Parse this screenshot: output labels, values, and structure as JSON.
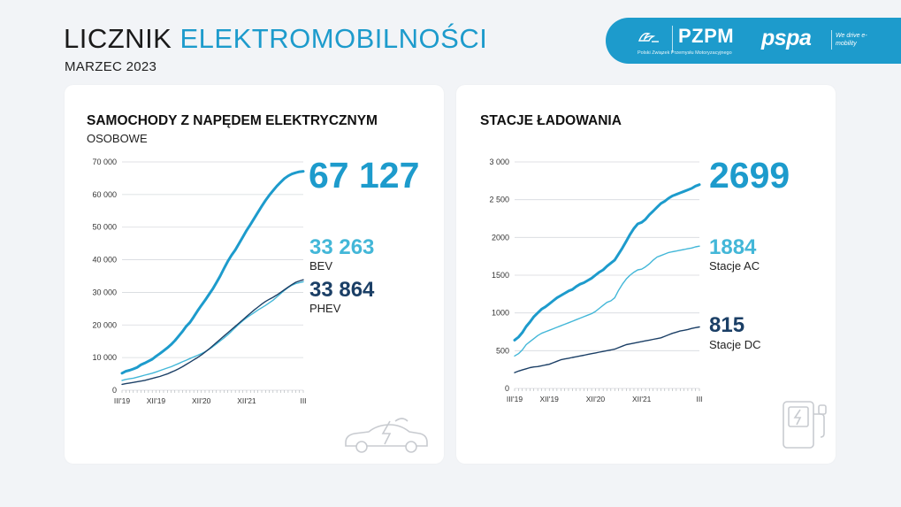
{
  "header": {
    "title_part1": "LICZNIK",
    "title_part2": "ELEKTROMOBILNOŚCI",
    "subtitle": "MARZEC 2023"
  },
  "logos": {
    "pzpm": "PZPM",
    "pzpm_sub": "Polski Związek Przemysłu Motoryzacyjnego",
    "pspa": "pspa",
    "pspa_tagline": "We drive e-mobility"
  },
  "colors": {
    "accent": "#1d9bcc",
    "light": "#43b7d8",
    "dark": "#1b3f66"
  },
  "chart_data": [
    {
      "type": "line",
      "title": "SAMOCHODY Z NAPĘDEM ELEKTRYCZNYM",
      "subtitle": "OSOBOWE",
      "x": [
        "III'19",
        "IV'19",
        "V'19",
        "VI'19",
        "VII'19",
        "VIII'19",
        "IX'19",
        "X'19",
        "XI'19",
        "XII'19",
        "I'20",
        "II'20",
        "III'20",
        "IV'20",
        "V'20",
        "VI'20",
        "VII'20",
        "VIII'20",
        "IX'20",
        "X'20",
        "XI'20",
        "XII'20",
        "I'21",
        "II'21",
        "III'21",
        "IV'21",
        "V'21",
        "VI'21",
        "VII'21",
        "VIII'21",
        "IX'21",
        "X'21",
        "XI'21",
        "XII'21",
        "I'22",
        "II'22",
        "III'22",
        "IV'22",
        "V'22",
        "VI'22",
        "VII'22",
        "VIII'22",
        "IX'22",
        "X'22",
        "XI'22",
        "XII'22",
        "I'23",
        "II'23",
        "III'23"
      ],
      "x_ticks": [
        "III'19",
        "XII'19",
        "XII'20",
        "XII'21",
        "III"
      ],
      "x_tick_index": [
        0,
        9,
        21,
        33,
        48
      ],
      "ylim": [
        0,
        70000
      ],
      "y_ticks": [
        "0",
        "10 000",
        "20 000",
        "30 000",
        "40 000",
        "50 000",
        "60 000",
        "70 000"
      ],
      "series": [
        {
          "name": "",
          "color": "#1d9bcc",
          "width": 3,
          "values": [
            5200,
            5800,
            6100,
            6500,
            7000,
            7800,
            8300,
            8900,
            9500,
            10400,
            11200,
            12100,
            13000,
            14000,
            15200,
            16600,
            18000,
            19600,
            20800,
            22500,
            24300,
            26000,
            27600,
            29300,
            31000,
            33000,
            35000,
            37300,
            39500,
            41400,
            43000,
            45000,
            47000,
            49000,
            50800,
            52700,
            54600,
            56400,
            58200,
            59800,
            61200,
            62600,
            63800,
            64900,
            65700,
            66300,
            66700,
            67000,
            67127
          ]
        },
        {
          "name": "BEV",
          "color": "#43b7d8",
          "width": 1.4,
          "values": [
            3000,
            3300,
            3500,
            3700,
            4000,
            4300,
            4600,
            4900,
            5200,
            5600,
            6000,
            6400,
            6800,
            7200,
            7700,
            8200,
            8700,
            9200,
            9700,
            10200,
            10700,
            11200,
            11800,
            12500,
            13300,
            14200,
            15100,
            16000,
            17000,
            18100,
            19200,
            20300,
            21300,
            22200,
            23000,
            23800,
            24600,
            25300,
            26000,
            26800,
            27600,
            28600,
            29600,
            30600,
            31500,
            32200,
            32700,
            33000,
            33263
          ]
        },
        {
          "name": "PHEV",
          "color": "#1b3f66",
          "width": 1.4,
          "values": [
            1800,
            2000,
            2200,
            2400,
            2600,
            2800,
            3000,
            3300,
            3600,
            3900,
            4200,
            4600,
            5000,
            5500,
            6000,
            6600,
            7200,
            7900,
            8600,
            9300,
            10000,
            10800,
            11700,
            12600,
            13600,
            14600,
            15600,
            16600,
            17600,
            18600,
            19600,
            20600,
            21600,
            22600,
            23600,
            24600,
            25500,
            26400,
            27200,
            27900,
            28500,
            29200,
            30000,
            30800,
            31600,
            32400,
            33100,
            33500,
            33864
          ]
        }
      ],
      "summary": {
        "total": "67 127",
        "bev": "33 263",
        "bev_label": "BEV",
        "phev": "33 864",
        "phev_label": "PHEV"
      }
    },
    {
      "type": "line",
      "title": "STACJE ŁADOWANIA",
      "x": [
        "III'19",
        "IV'19",
        "V'19",
        "VI'19",
        "VII'19",
        "VIII'19",
        "IX'19",
        "X'19",
        "XI'19",
        "XII'19",
        "I'20",
        "II'20",
        "III'20",
        "IV'20",
        "V'20",
        "VI'20",
        "VII'20",
        "VIII'20",
        "IX'20",
        "X'20",
        "XI'20",
        "XII'20",
        "I'21",
        "II'21",
        "III'21",
        "IV'21",
        "V'21",
        "VI'21",
        "VII'21",
        "VIII'21",
        "IX'21",
        "X'21",
        "XI'21",
        "XII'21",
        "I'22",
        "II'22",
        "III'22",
        "IV'22",
        "V'22",
        "VI'22",
        "VII'22",
        "VIII'22",
        "IX'22",
        "X'22",
        "XI'22",
        "XII'22",
        "I'23",
        "II'23",
        "III'23"
      ],
      "x_ticks": [
        "III'19",
        "XII'19",
        "XII'20",
        "XII'21",
        "III"
      ],
      "x_tick_index": [
        0,
        9,
        21,
        33,
        48
      ],
      "ylim": [
        0,
        3000
      ],
      "y_ticks": [
        "0",
        "500",
        "1000",
        "1500",
        "2000",
        "2 500",
        "3 000"
      ],
      "series": [
        {
          "name": "",
          "color": "#1d9bcc",
          "width": 3,
          "values": [
            640,
            680,
            740,
            820,
            880,
            950,
            1000,
            1050,
            1080,
            1120,
            1160,
            1200,
            1230,
            1260,
            1290,
            1310,
            1350,
            1380,
            1400,
            1430,
            1460,
            1500,
            1540,
            1570,
            1620,
            1660,
            1700,
            1780,
            1860,
            1950,
            2040,
            2120,
            2180,
            2200,
            2240,
            2300,
            2350,
            2400,
            2450,
            2480,
            2520,
            2550,
            2570,
            2590,
            2610,
            2630,
            2650,
            2680,
            2699
          ]
        },
        {
          "name": "Stacje AC",
          "color": "#43b7d8",
          "width": 1.4,
          "values": [
            430,
            460,
            510,
            580,
            620,
            660,
            700,
            730,
            750,
            770,
            790,
            810,
            830,
            850,
            870,
            890,
            910,
            930,
            950,
            970,
            990,
            1020,
            1060,
            1100,
            1140,
            1160,
            1200,
            1300,
            1380,
            1450,
            1500,
            1540,
            1570,
            1580,
            1610,
            1650,
            1700,
            1740,
            1760,
            1780,
            1800,
            1810,
            1820,
            1830,
            1840,
            1850,
            1860,
            1875,
            1884
          ]
        },
        {
          "name": "Stacje DC",
          "color": "#1b3f66",
          "width": 1.4,
          "values": [
            210,
            230,
            245,
            260,
            275,
            285,
            290,
            300,
            310,
            320,
            340,
            360,
            380,
            390,
            400,
            410,
            420,
            430,
            440,
            450,
            460,
            470,
            480,
            490,
            500,
            510,
            520,
            540,
            560,
            580,
            590,
            600,
            610,
            620,
            630,
            640,
            650,
            660,
            670,
            690,
            710,
            730,
            745,
            760,
            770,
            780,
            795,
            805,
            815
          ]
        }
      ],
      "summary": {
        "total": "2699",
        "ac": "1884",
        "ac_label": "Stacje AC",
        "dc": "815",
        "dc_label": "Stacje DC"
      }
    }
  ]
}
